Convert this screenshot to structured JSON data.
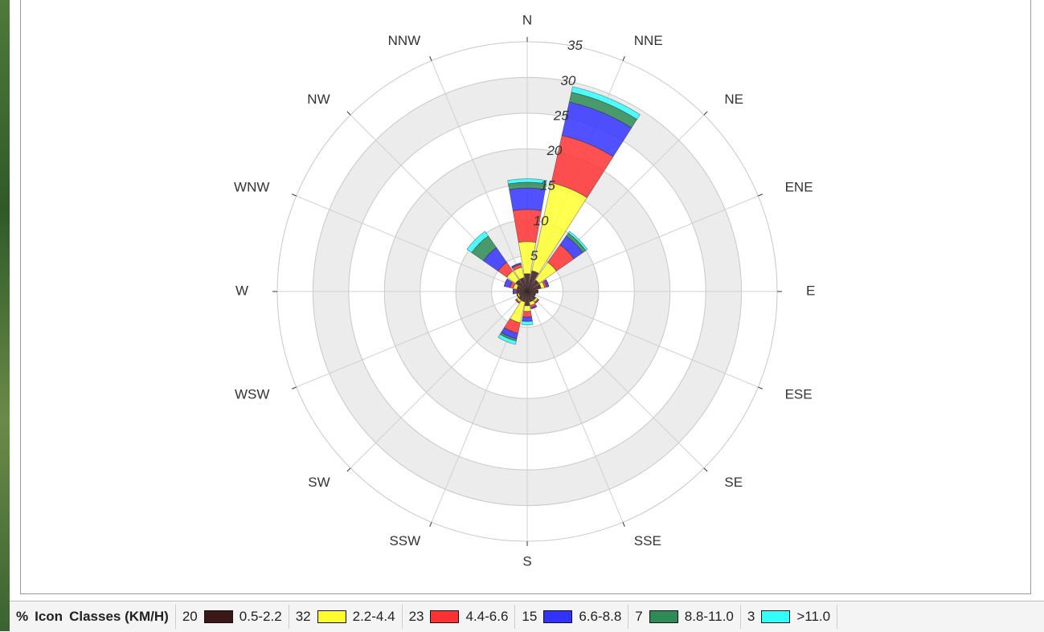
{
  "chart_data": {
    "type": "windrose",
    "directions": [
      "N",
      "NNE",
      "NE",
      "ENE",
      "E",
      "ESE",
      "SE",
      "SSE",
      "S",
      "SSW",
      "SW",
      "WSW",
      "W",
      "WNW",
      "NW",
      "NNW"
    ],
    "rlim": [
      0,
      35
    ],
    "rticks": [
      5,
      10,
      15,
      20,
      25,
      30,
      35
    ],
    "grid": true,
    "legend_header": [
      "%",
      "Icon",
      "Classes (KM/H)"
    ],
    "series": [
      {
        "name": "0.5-2.2",
        "percent": 20,
        "color": "#3b1818",
        "values": [
          2.5,
          3,
          2,
          2,
          1.5,
          1.2,
          1.5,
          1.5,
          2,
          1.5,
          1.5,
          1.2,
          1.5,
          1.5,
          2,
          2
        ]
      },
      {
        "name": "2.2-4.4",
        "percent": 32,
        "color": "#ffff30",
        "values": [
          4.5,
          12.6,
          3,
          0.5,
          0,
          0,
          0.3,
          0.5,
          0.8,
          3,
          0.3,
          0.2,
          0,
          0.5,
          1.5,
          1.5
        ]
      },
      {
        "name": "4.4-6.6",
        "percent": 23,
        "color": "#ff3333",
        "values": [
          4.5,
          6.8,
          3,
          0.3,
          0,
          0,
          0.2,
          0.3,
          0.8,
          1.5,
          0.2,
          0.1,
          0.2,
          0.5,
          1.5,
          0.4
        ]
      },
      {
        "name": "6.6-8.8",
        "percent": 15,
        "color": "#3333ff",
        "values": [
          3,
          4.8,
          1.5,
          0.3,
          0,
          0,
          0,
          0.2,
          0.6,
          0.8,
          0,
          0,
          0.3,
          0.8,
          2.5,
          0.2
        ]
      },
      {
        "name": "8.8-11.0",
        "percent": 7,
        "color": "#2e8b57",
        "values": [
          0.8,
          1.4,
          0.5,
          0,
          0,
          0,
          0,
          0,
          0,
          0.3,
          0,
          0,
          0,
          0,
          2,
          0
        ]
      },
      {
        "name": ">11.0",
        "percent": 3,
        "color": "#33ffff",
        "values": [
          0.5,
          0.8,
          0.3,
          0,
          0,
          0,
          0,
          0,
          0.5,
          0.5,
          0,
          0,
          0,
          0,
          0.8,
          0
        ]
      }
    ]
  }
}
